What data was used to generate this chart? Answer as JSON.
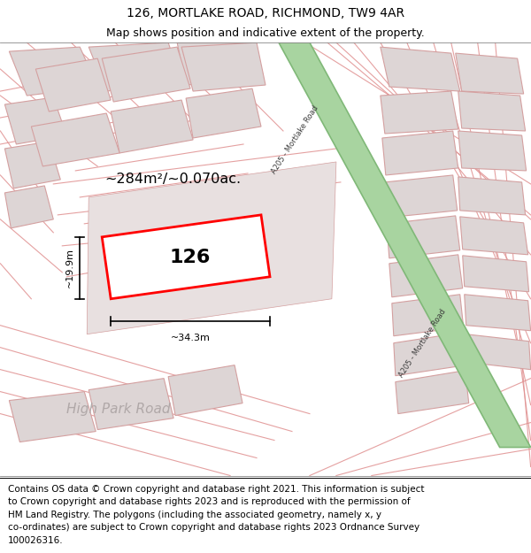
{
  "title": "126, MORTLAKE ROAD, RICHMOND, TW9 4AR",
  "subtitle": "Map shows position and indicative extent of the property.",
  "footer": "Contains OS data © Crown copyright and database right 2021. This information is subject\nto Crown copyright and database rights 2023 and is reproduced with the permission of\nHM Land Registry. The polygons (including the associated geometry, namely x, y\nco-ordinates) are subject to Crown copyright and database rights 2023 Ordnance Survey\n100026316.",
  "map_bg": "#f0eaea",
  "plot_outline_color": "#ff0000",
  "label_126": "126",
  "area_label": "~284m²/~0.070ac.",
  "width_label": "~34.3m",
  "height_label": "~19.9m",
  "road_label_top": "A205 - Mortlake Road",
  "road_label_bottom": "A205 - Mortlake Road",
  "street_label": "High Park Road",
  "footer_fontsize": 7.5,
  "title_fontsize": 10,
  "subtitle_fontsize": 9,
  "block_fill": "#ddd5d5",
  "block_edge": "#d4a0a0",
  "road_fill": "#a8d4a0",
  "road_edge": "#80b878",
  "line_color": "#e09090"
}
